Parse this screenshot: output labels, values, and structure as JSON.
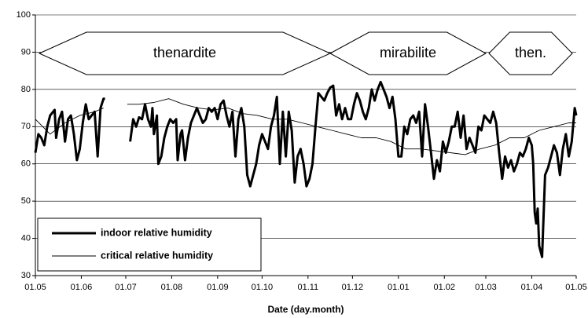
{
  "chart_data": {
    "type": "line",
    "xlabel": "Date (day.month)",
    "annotations": [
      "thenardite",
      "mirabilite",
      "then."
    ],
    "xlim": [
      0,
      365
    ],
    "xticks": [
      {
        "value": 0,
        "label": "01.05"
      },
      {
        "value": 31,
        "label": "01.06"
      },
      {
        "value": 61,
        "label": "01.07"
      },
      {
        "value": 92,
        "label": "01.08"
      },
      {
        "value": 123,
        "label": "01.09"
      },
      {
        "value": 153,
        "label": "01.10"
      },
      {
        "value": 184,
        "label": "01.11"
      },
      {
        "value": 214,
        "label": "01.12"
      },
      {
        "value": 245,
        "label": "01.01"
      },
      {
        "value": 276,
        "label": "01.02"
      },
      {
        "value": 304,
        "label": "01.03"
      },
      {
        "value": 335,
        "label": "01.04"
      },
      {
        "value": 365,
        "label": "01.05"
      }
    ],
    "ylim": [
      30,
      100
    ],
    "yticks": [
      30,
      40,
      50,
      60,
      70,
      80,
      90,
      100
    ],
    "grid": true,
    "series": [
      {
        "name": "indoor relative humidity",
        "color": "#000000",
        "x": [
          0,
          2,
          4,
          6,
          8,
          10,
          13,
          14,
          16,
          18,
          20,
          22,
          24,
          26,
          28,
          30,
          32,
          34,
          36,
          38,
          40,
          42,
          44,
          46,
          47,
          55,
          64,
          66,
          68,
          70,
          72,
          74,
          76,
          78,
          79,
          80,
          82,
          83,
          85,
          87,
          89,
          91,
          93,
          95,
          96,
          98,
          99,
          101,
          103,
          105,
          107,
          109,
          111,
          113,
          115,
          117,
          119,
          121,
          123,
          125,
          127,
          129,
          131,
          133,
          135,
          137,
          139,
          141,
          143,
          145,
          147,
          149,
          151,
          153,
          155,
          157,
          159,
          161,
          163,
          165,
          167,
          169,
          171,
          173,
          175,
          177,
          179,
          181,
          183,
          185,
          187,
          189,
          191,
          193,
          195,
          197,
          199,
          201,
          203,
          205,
          207,
          209,
          211,
          213,
          215,
          217,
          219,
          221,
          223,
          225,
          227,
          229,
          231,
          233,
          235,
          237,
          239,
          241,
          243,
          245,
          247,
          249,
          251,
          253,
          255,
          257,
          259,
          261,
          263,
          265,
          267,
          269,
          271,
          273,
          275,
          277,
          279,
          281,
          283,
          285,
          287,
          289,
          291,
          293,
          295,
          297,
          299,
          301,
          303,
          305,
          307,
          309,
          311,
          313,
          315,
          317,
          319,
          321,
          323,
          325,
          327,
          329,
          331,
          333,
          335,
          336,
          337,
          338,
          339,
          340,
          342,
          344,
          346,
          348,
          350,
          352,
          354,
          356,
          358,
          360,
          362,
          364,
          365
        ],
        "values": [
          63,
          68,
          67,
          65,
          70,
          73,
          74.5,
          67,
          72,
          74,
          66,
          72,
          73,
          68,
          61,
          64,
          71,
          76,
          72,
          73,
          74,
          62,
          75,
          77.5,
          77.5,
          null,
          66,
          72,
          70,
          72.5,
          72,
          76,
          72,
          70,
          75,
          68,
          73,
          60,
          62,
          67,
          70,
          72,
          71,
          72,
          61,
          68,
          69,
          61,
          67,
          71,
          73,
          75,
          73,
          71,
          72,
          75,
          74,
          75,
          72,
          76,
          77,
          73,
          70,
          74,
          62,
          72,
          75,
          70,
          57,
          54,
          57,
          60,
          65,
          68,
          66,
          64,
          70,
          73,
          78,
          60,
          74,
          62,
          74,
          69,
          55,
          62,
          64,
          60,
          54,
          56,
          60,
          70,
          79,
          78,
          77,
          79,
          80.5,
          81,
          73,
          76,
          72,
          75,
          72,
          72,
          76,
          79,
          77,
          74,
          72,
          75,
          80,
          77,
          80,
          82,
          80,
          78,
          75,
          78,
          72,
          62,
          62,
          70,
          68,
          72,
          73,
          71,
          74,
          62,
          76,
          70,
          63,
          56,
          61,
          58,
          66,
          63,
          66,
          70,
          70,
          74,
          67,
          73,
          64,
          67,
          65,
          63,
          70,
          69,
          73,
          72,
          71,
          74,
          71,
          63,
          56,
          62,
          59,
          61,
          58,
          60,
          63,
          62,
          64,
          67,
          65,
          60,
          47,
          44,
          48,
          38,
          35,
          57,
          59,
          62,
          65,
          63,
          57,
          64,
          68,
          62,
          66,
          75,
          73
        ]
      },
      {
        "name": "critical relative humidity",
        "color": "#000000",
        "x": [
          0,
          10,
          20,
          30,
          40,
          46,
          54,
          62,
          70,
          80,
          90,
          100,
          110,
          120,
          130,
          140,
          150,
          160,
          170,
          180,
          190,
          200,
          210,
          220,
          230,
          240,
          250,
          260,
          270,
          280,
          290,
          300,
          310,
          320,
          330,
          340,
          350,
          360,
          365
        ],
        "values": [
          72,
          68,
          71,
          73,
          74,
          75,
          null,
          76,
          76,
          76.5,
          77.5,
          76,
          75,
          74.5,
          75,
          73.5,
          73,
          72,
          72,
          71,
          70,
          69,
          68,
          67,
          67,
          66,
          64,
          64,
          63.5,
          63,
          62.5,
          64,
          65,
          67,
          67,
          69,
          70,
          71,
          71
        ]
      }
    ]
  }
}
